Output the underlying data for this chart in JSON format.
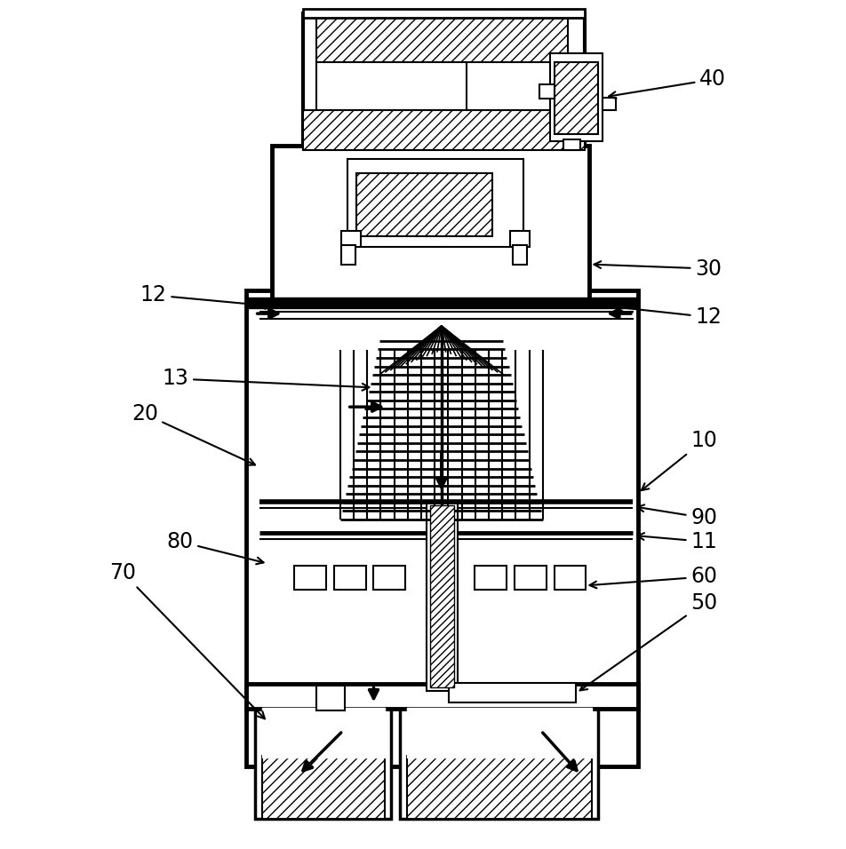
{
  "bg_color": "#ffffff",
  "line_color": "#000000",
  "fig_width": 9.52,
  "fig_height": 9.56
}
